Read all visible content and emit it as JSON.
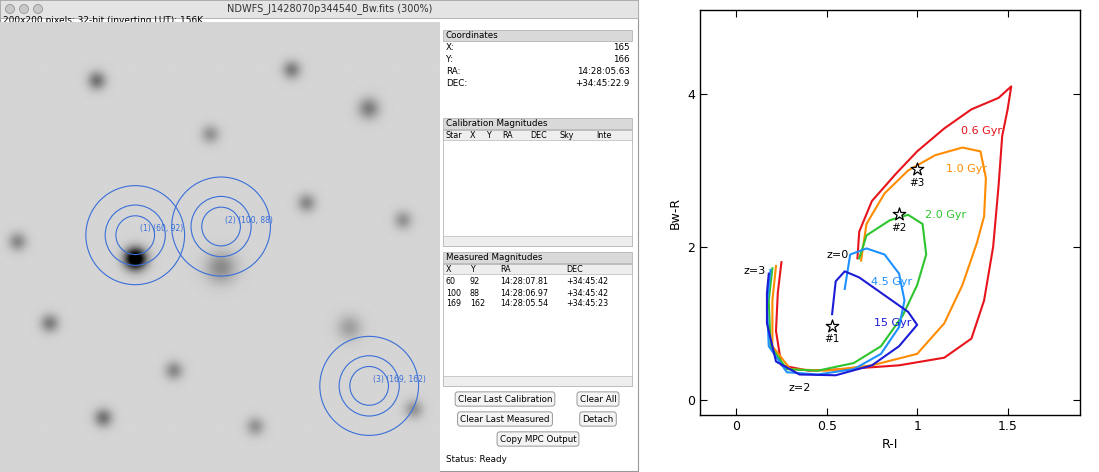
{
  "screenshot": {
    "window_title": "NDWFS_J1428070p344540_Bw.fits (300%)",
    "info": "200x200 pixels; 32-bit (inverting LUT); 156K",
    "image": {
      "apertures": [
        {
          "label": "(1) (60, 92)",
          "x": 60,
          "y": 92
        },
        {
          "label": "(2) (100, 88)",
          "x": 100,
          "y": 88
        },
        {
          "label": "(3) (169, 162)",
          "x": 169,
          "y": 162
        }
      ]
    },
    "sidebar": {
      "coordinates": {
        "title": "Coordinates",
        "rows": [
          [
            "X:",
            "165"
          ],
          [
            "Y:",
            "166"
          ],
          [
            "RA:",
            "14:28:05.63"
          ],
          [
            "DEC:",
            "+34:45:22.9"
          ]
        ]
      },
      "calibration": {
        "title": "Calibration Magnitudes",
        "columns": [
          "Star",
          "X",
          "Y",
          "RA",
          "DEC",
          "Sky",
          "Inte"
        ]
      },
      "measured": {
        "title": "Measured Magnitudes",
        "columns": [
          "X",
          "Y",
          "RA",
          "DEC"
        ],
        "rows": [
          [
            "60",
            "92",
            "14:28:07.81",
            "+34:45:42"
          ],
          [
            "100",
            "88",
            "14:28:06.97",
            "+34:45:42"
          ],
          [
            "169",
            "162",
            "14:28:05.54",
            "+34:45:23"
          ]
        ]
      },
      "buttons": [
        [
          "Clear Last Calibration",
          "Clear All"
        ],
        [
          "Clear Last Measured",
          "Detach"
        ],
        [
          "Copy MPC Output"
        ]
      ],
      "status": "Status: Ready"
    }
  },
  "chart_data": {
    "type": "line",
    "xlabel": "R-I",
    "ylabel": "Bw-R",
    "xlim": [
      -0.2,
      1.9
    ],
    "ylim": [
      -0.2,
      5.1
    ],
    "xticks": [
      0,
      0.5,
      1,
      1.5
    ],
    "yticks": [
      0,
      2,
      4
    ],
    "series": [
      {
        "name": "0.6 Gyr",
        "color": "#e8141c",
        "x": [
          0.67,
          0.68,
          0.75,
          0.88,
          1.0,
          1.15,
          1.3,
          1.45,
          1.52,
          1.5,
          1.47,
          1.45,
          1.42,
          1.37,
          1.3,
          1.15,
          0.9,
          0.6,
          0.4,
          0.25,
          0.22,
          0.23,
          0.25
        ],
        "y": [
          1.85,
          2.2,
          2.6,
          2.95,
          3.25,
          3.55,
          3.8,
          3.95,
          4.1,
          3.8,
          3.45,
          2.8,
          2.0,
          1.3,
          0.8,
          0.55,
          0.45,
          0.4,
          0.38,
          0.45,
          0.9,
          1.4,
          1.8
        ]
      },
      {
        "name": "1.0 Gyr",
        "color": "#ff8c00",
        "x": [
          0.69,
          0.72,
          0.82,
          0.95,
          1.1,
          1.25,
          1.35,
          1.38,
          1.37,
          1.33,
          1.25,
          1.15,
          1.0,
          0.75,
          0.5,
          0.3,
          0.2,
          0.2,
          0.22
        ],
        "y": [
          1.82,
          2.3,
          2.7,
          3.0,
          3.2,
          3.3,
          3.25,
          2.9,
          2.4,
          2.05,
          1.5,
          1.0,
          0.6,
          0.45,
          0.38,
          0.4,
          0.7,
          1.3,
          1.75
        ]
      },
      {
        "name": "2.0 Gyr",
        "color": "#2ec42e",
        "x": [
          0.68,
          0.72,
          0.85,
          0.95,
          1.03,
          1.05,
          1.0,
          0.92,
          0.8,
          0.65,
          0.45,
          0.28,
          0.19,
          0.18,
          0.2
        ],
        "y": [
          1.85,
          2.15,
          2.35,
          2.42,
          2.3,
          1.9,
          1.5,
          1.1,
          0.7,
          0.48,
          0.38,
          0.4,
          0.7,
          1.3,
          1.72
        ]
      },
      {
        "name": "4.5 Gyr",
        "color": "#1e90ff",
        "x": [
          0.6,
          0.63,
          0.72,
          0.82,
          0.9,
          0.93,
          0.9,
          0.8,
          0.65,
          0.45,
          0.28,
          0.18,
          0.17,
          0.19
        ],
        "y": [
          1.45,
          1.9,
          1.98,
          1.9,
          1.65,
          1.3,
          0.95,
          0.6,
          0.4,
          0.33,
          0.36,
          0.7,
          1.25,
          1.7
        ]
      },
      {
        "name": "15 Gyr",
        "color": "#1c1cd6",
        "x": [
          0.53,
          0.55,
          0.6,
          0.68,
          0.8,
          0.95,
          1.0,
          0.9,
          0.75,
          0.55,
          0.35,
          0.22,
          0.17,
          0.17,
          0.18
        ],
        "y": [
          1.12,
          1.55,
          1.68,
          1.6,
          1.4,
          1.15,
          0.98,
          0.7,
          0.45,
          0.32,
          0.33,
          0.5,
          1.0,
          1.4,
          1.65
        ]
      }
    ],
    "stars": {
      "type": "scatter",
      "marker": "star",
      "color": "black",
      "x": [
        0.53,
        0.9,
        1.0
      ],
      "y": [
        0.97,
        2.43,
        3.02
      ],
      "labels": [
        "#1",
        "#2",
        "#3"
      ]
    },
    "annotations": [
      {
        "text": "z=0",
        "x": 0.56,
        "y": 1.9
      },
      {
        "text": "z=3",
        "x": 0.1,
        "y": 1.68
      },
      {
        "text": "z=2",
        "x": 0.35,
        "y": 0.15
      }
    ]
  }
}
